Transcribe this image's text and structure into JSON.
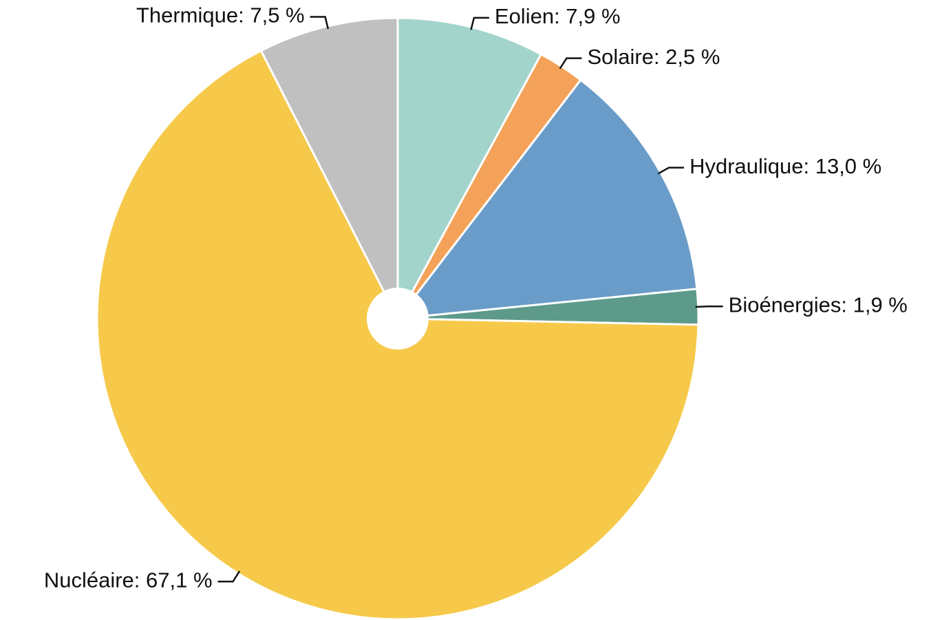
{
  "chart_data": {
    "type": "pie",
    "values": [
      7.9,
      2.5,
      13.0,
      1.9,
      67.1,
      7.5
    ],
    "value_labels": [
      "Eolien: 7,9 %",
      "Solaire: 2,5 %",
      "Hydraulique: 13,0 %",
      "Bioénergies: 1,9 %",
      "Nucléaire: 67,1 %",
      "Thermique: 7,5 %"
    ],
    "colors": [
      "#a3d4cc",
      "#f4a259",
      "#6a9cc9",
      "#5e9a8a",
      "#f6c94a",
      "#c0c0c0"
    ]
  }
}
